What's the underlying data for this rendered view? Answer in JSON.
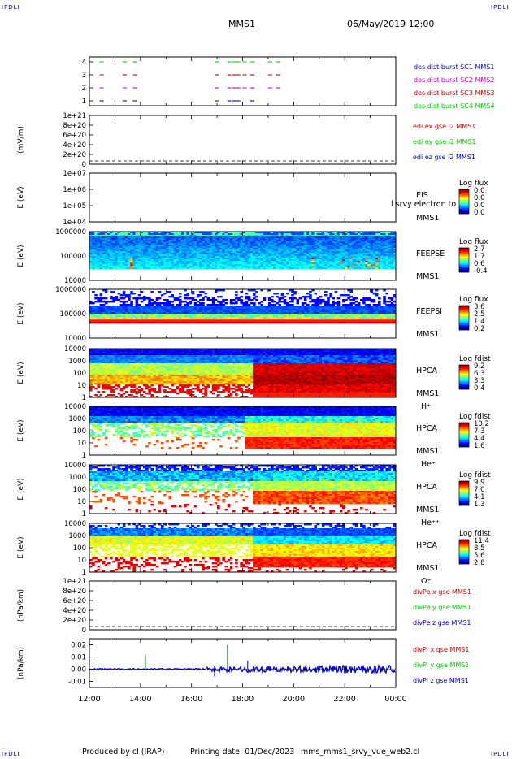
{
  "corners": {
    "tl": "IPDLI",
    "tr": "IPDLI",
    "bl": "IPDLI",
    "br": "IPDLI"
  },
  "header": {
    "spacecraft": "MMS1",
    "datetime": "06/May/2019 12:00"
  },
  "footer": {
    "produced": "Produced by cl (IRAP)",
    "printing": "Printing date: 01/Dec/2023",
    "script": "mms_mms1_srvy_vue_web2.cl"
  },
  "time_axis": {
    "ticks": [
      "12:00",
      "14:00",
      "16:00",
      "18:00",
      "20:00",
      "22:00",
      "00:00"
    ]
  },
  "colors": {
    "blue": "#0000d0",
    "magenta": "#d000d0",
    "red": "#d00000",
    "green": "#00d000"
  },
  "chart_data": [
    {
      "type": "scatter",
      "name": "burst",
      "ylabel": "",
      "yticks": [
        "4",
        "3",
        "2",
        "1"
      ],
      "legend": [
        {
          "text": "des dist burst SC1 MMS1",
          "color": "#0000d0"
        },
        {
          "text": "des dist burst SC2 MMS2",
          "color": "#d000d0"
        },
        {
          "text": "des dist burst SC3 MMS3",
          "color": "#d00000"
        },
        {
          "text": "des dist burst SC4 MMS4",
          "color": "#00d000"
        }
      ],
      "x_hours": [
        12.4,
        13.3,
        13.7,
        16.9,
        17.4,
        17.6,
        17.75,
        18.0,
        18.3,
        19.0,
        19.3
      ]
    },
    {
      "type": "line",
      "name": "edi",
      "ylabel": "(mV/m)",
      "yticks": [
        "1e+21",
        "8e+20",
        "6e+20",
        "4e+20",
        "2e+20",
        "0"
      ],
      "legend": [
        {
          "text": "edi ex gse l2 MMS1",
          "color": "#d00000"
        },
        {
          "text": "edi ey gse l2 MMS1",
          "color": "#00d000"
        },
        {
          "text": "edi ez gse l2 MMS1",
          "color": "#0000d0"
        }
      ]
    },
    {
      "type": "heatmap",
      "name": "eis",
      "ylabel": "E (eV)",
      "yticks": [
        "1e+07",
        "1e+06",
        "1e+05",
        "1e+04"
      ],
      "label1": "EIS",
      "label2": "MMS1",
      "label3": "",
      "overlay": "l srvy electron to",
      "cbar_title": "Log flux",
      "cbar_ticks": [
        "0.0",
        "0.0",
        "0.0",
        "0.0"
      ]
    },
    {
      "type": "heatmap",
      "name": "feepse",
      "ylabel": "E (eV)",
      "yticks": [
        "1000000",
        "100000",
        "10000"
      ],
      "label1": "FEEPSE",
      "label2": "MMS1",
      "label3": "",
      "cbar_title": "Log flux",
      "cbar_ticks": [
        "2.7",
        "1.7",
        "0.6",
        "-0.4"
      ]
    },
    {
      "type": "heatmap",
      "name": "feepsi",
      "ylabel": "E (eV)",
      "yticks": [
        "1000000",
        "100000",
        "10000"
      ],
      "label1": "FEEPSI",
      "label2": "MMS1",
      "label3": "",
      "cbar_title": "Log flux",
      "cbar_ticks": [
        "3.6",
        "2.5",
        "1.4",
        "0.2"
      ]
    },
    {
      "type": "heatmap",
      "name": "hpca-h",
      "ylabel": "E (eV)",
      "yticks": [
        "10000",
        "1000",
        "100",
        "10",
        "1"
      ],
      "label1": "HPCA",
      "label2": "MMS1",
      "label3": "H⁺",
      "cbar_title": "Log fdist",
      "cbar_ticks": [
        "9.2",
        "6.3",
        "3.3",
        "0.4"
      ]
    },
    {
      "type": "heatmap",
      "name": "hpca-he",
      "ylabel": "E (eV)",
      "yticks": [
        "10000",
        "1000",
        "100",
        "10",
        "1"
      ],
      "label1": "HPCA",
      "label2": "MMS1",
      "label3": "He⁺",
      "cbar_title": "Log fdist",
      "cbar_ticks": [
        "10.2",
        "7.3",
        "4.4",
        "1.6"
      ]
    },
    {
      "type": "heatmap",
      "name": "hpca-hepp",
      "ylabel": "E (eV)",
      "yticks": [
        "10000",
        "1000",
        "100",
        "10",
        "1"
      ],
      "label1": "HPCA",
      "label2": "MMS1",
      "label3": "He⁺⁺",
      "cbar_title": "Log fdist",
      "cbar_ticks": [
        "9.9",
        "7.0",
        "4.1",
        "1.3"
      ]
    },
    {
      "type": "heatmap",
      "name": "hpca-o",
      "ylabel": "E (eV)",
      "yticks": [
        "10000",
        "1000",
        "100",
        "10",
        "1"
      ],
      "label1": "HPCA",
      "label2": "MMS1",
      "label3": "O⁺",
      "cbar_title": "Log fdist",
      "cbar_ticks": [
        "11.4",
        "8.5",
        "5.6",
        "2.8"
      ]
    },
    {
      "type": "line",
      "name": "divpe",
      "ylabel": "(nPa/km)",
      "yticks": [
        "1e+21",
        "8e+20",
        "6e+20",
        "4e+20",
        "2e+20",
        "0"
      ],
      "legend": [
        {
          "text": "divPe x gse MMS1",
          "color": "#d00000"
        },
        {
          "text": "divPe y gse MMS1",
          "color": "#00d000"
        },
        {
          "text": "divPe z gse MMS1",
          "color": "#0000d0"
        }
      ]
    },
    {
      "type": "line",
      "name": "divpi",
      "ylabel": "(nPa/km)",
      "yticks": [
        "0.02",
        "0.01",
        "0.00",
        "-0.01"
      ],
      "ylim": [
        -0.015,
        0.025
      ],
      "legend": [
        {
          "text": "divPi x gse MMS1",
          "color": "#d00000"
        },
        {
          "text": "divPi y gse MMS1",
          "color": "#00d000"
        },
        {
          "text": "divPi z gse MMS1",
          "color": "#0000d0"
        }
      ],
      "spikes": [
        {
          "x": 14.2,
          "y": 0.012,
          "color": "#00d000"
        },
        {
          "x": 17.4,
          "y": 0.02,
          "color": "#00d000"
        },
        {
          "x": 18.2,
          "y": 0.007,
          "color": "#0000d0"
        },
        {
          "x": 16.9,
          "y": -0.006,
          "color": "#0000d0"
        }
      ]
    }
  ]
}
